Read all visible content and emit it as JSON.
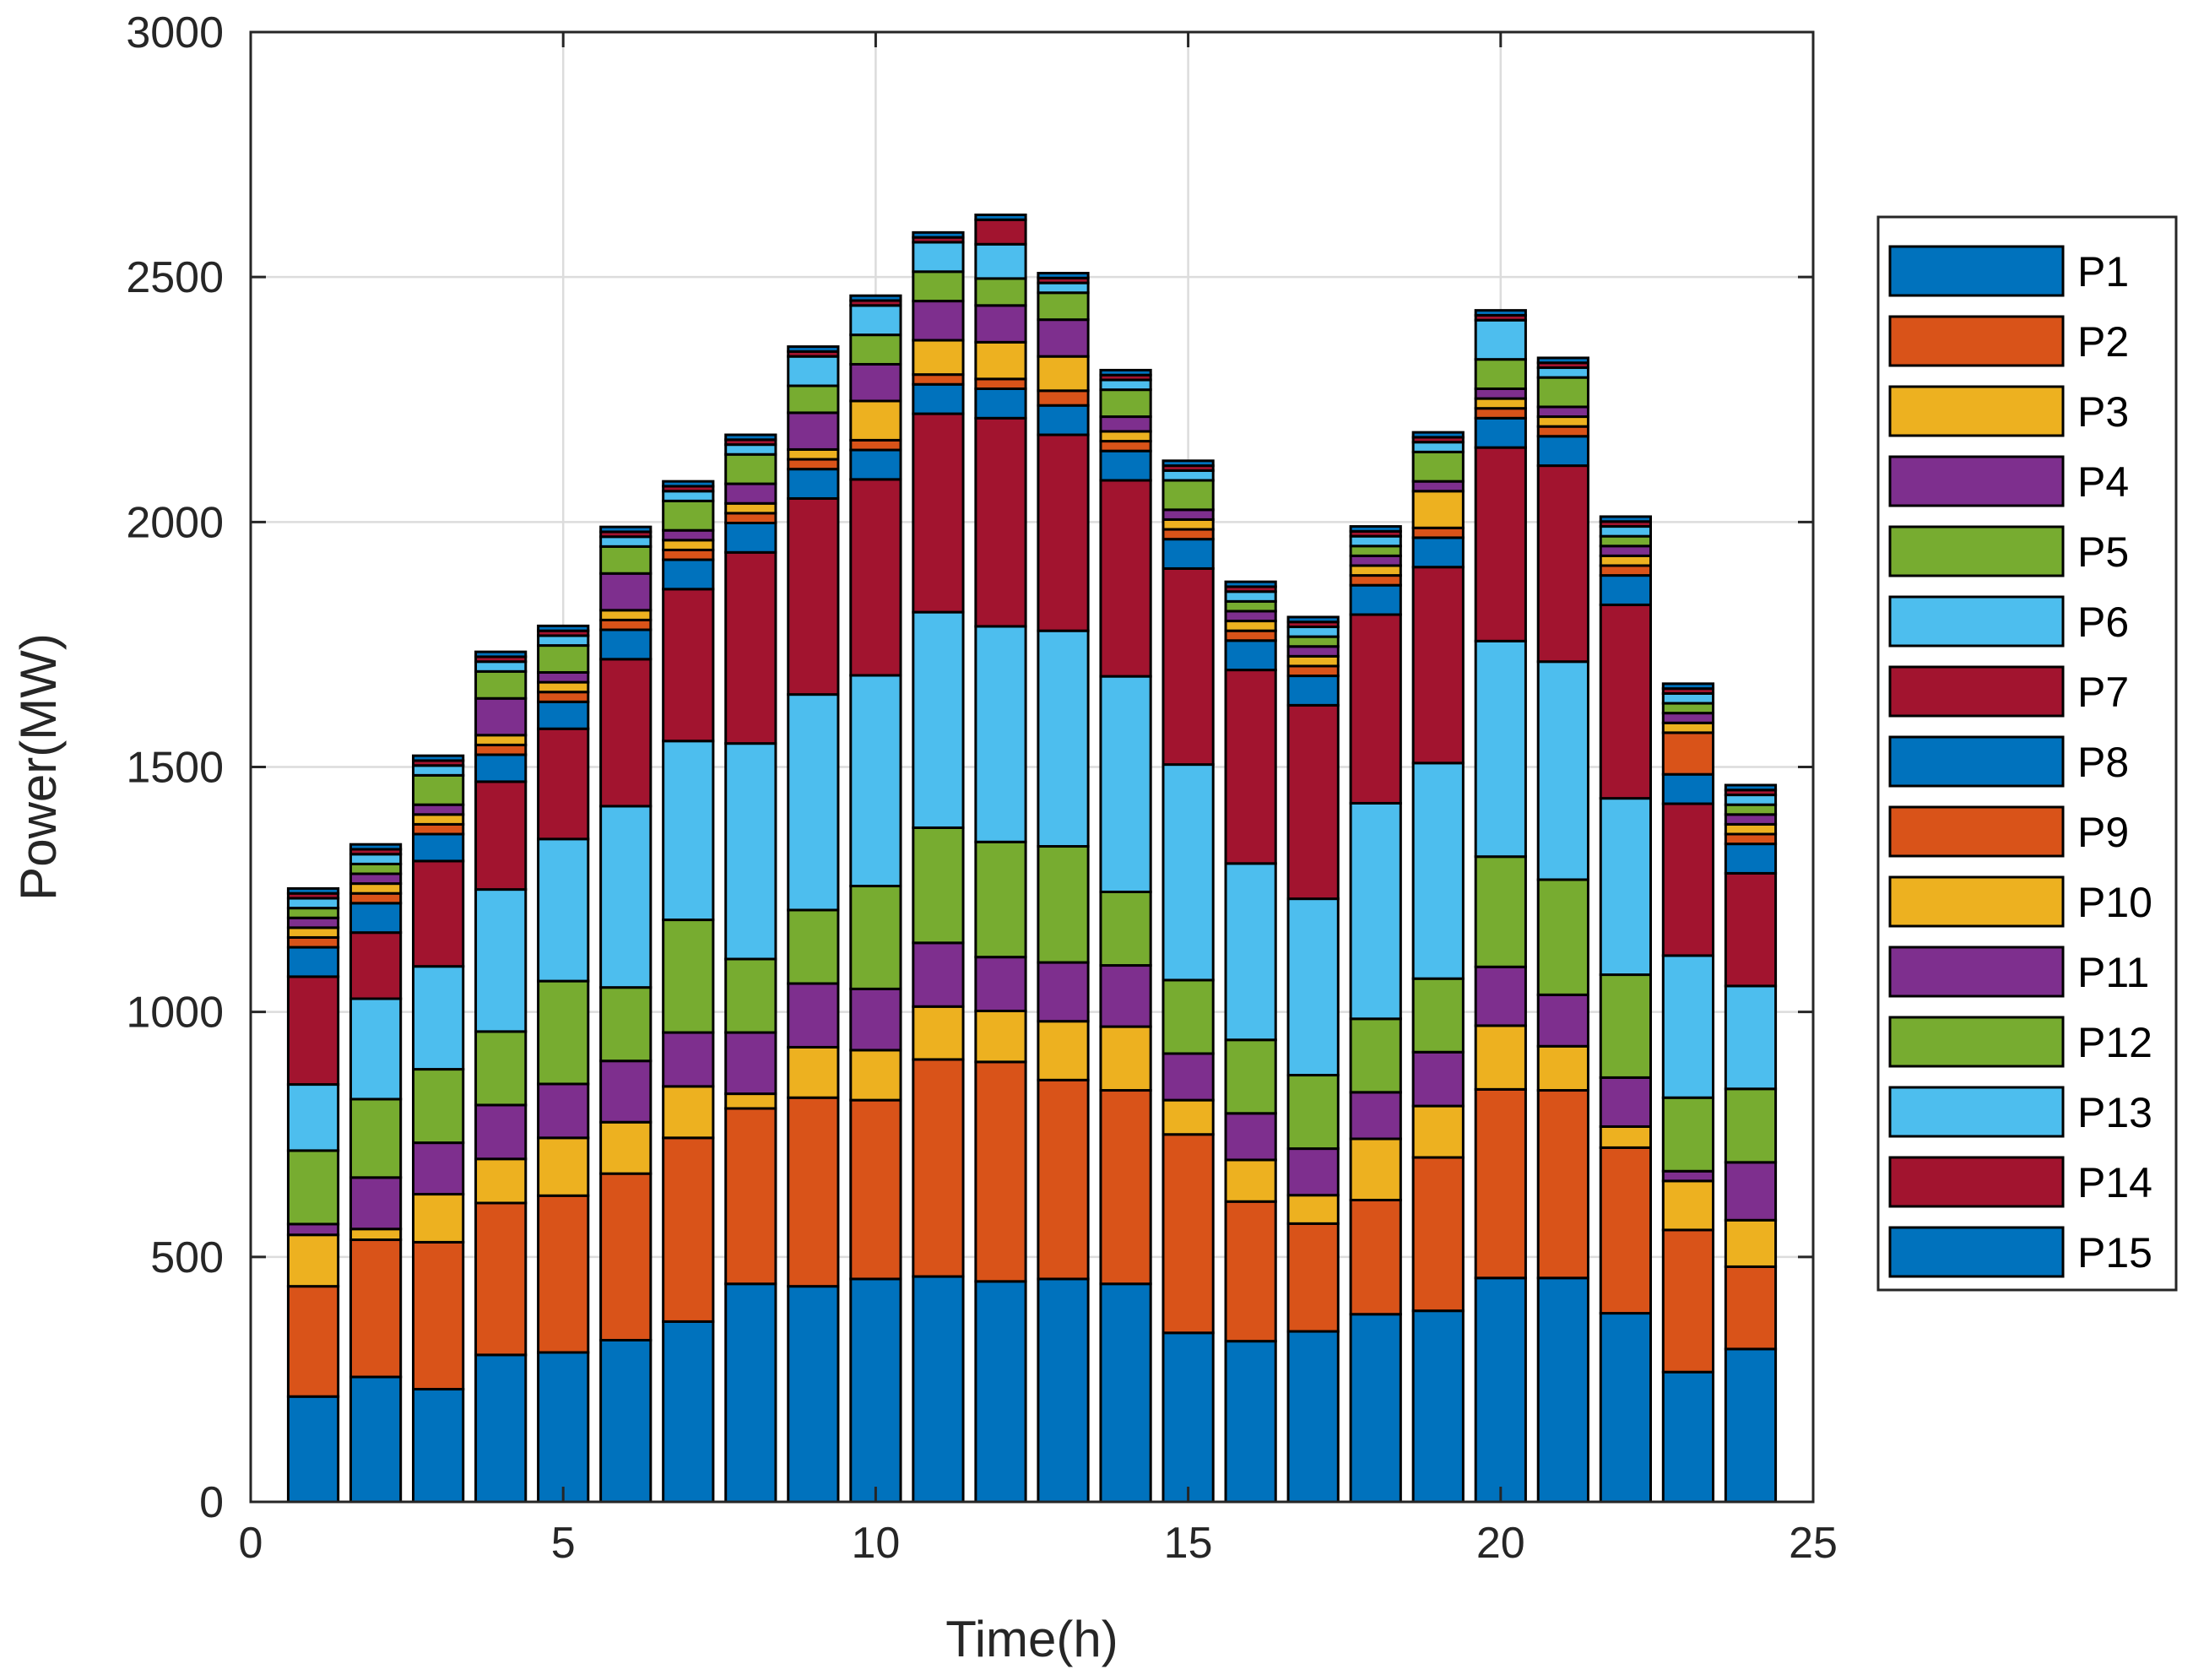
{
  "chart_data": {
    "type": "bar",
    "stacked": true,
    "title": "",
    "xlabel": "Time(h)",
    "ylabel": "Power(MW)",
    "xlim": [
      0,
      25
    ],
    "ylim": [
      0,
      3000
    ],
    "xticks": [
      0,
      5,
      10,
      15,
      20,
      25
    ],
    "yticks": [
      0,
      500,
      1000,
      1500,
      2000,
      2500,
      3000
    ],
    "grid": true,
    "legend_position": "right",
    "categories": [
      1,
      2,
      3,
      4,
      5,
      6,
      7,
      8,
      9,
      10,
      11,
      12,
      13,
      14,
      15,
      16,
      17,
      18,
      19,
      20,
      21,
      22,
      23,
      24
    ],
    "series": [
      {
        "name": "P1",
        "color": "#0072BD",
        "values": [
          215,
          255,
          230,
          300,
          305,
          330,
          368,
          445,
          440,
          455,
          460,
          450,
          455,
          445,
          345,
          328,
          348,
          383,
          390,
          457,
          457,
          385,
          265,
          312
        ]
      },
      {
        "name": "P2",
        "color": "#D95319",
        "values": [
          225,
          280,
          300,
          310,
          320,
          340,
          375,
          358,
          385,
          365,
          443,
          448,
          406,
          395,
          405,
          285,
          220,
          233,
          313,
          385,
          383,
          338,
          290,
          168
        ]
      },
      {
        "name": "P3",
        "color": "#EDB120",
        "values": [
          105,
          22,
          98,
          90,
          118,
          105,
          105,
          30,
          103,
          102,
          108,
          104,
          120,
          130,
          70,
          85,
          58,
          125,
          105,
          130,
          90,
          43,
          100,
          95
        ]
      },
      {
        "name": "P4",
        "color": "#7E2F8E",
        "values": [
          22,
          105,
          105,
          110,
          110,
          125,
          110,
          125,
          130,
          125,
          130,
          110,
          120,
          125,
          95,
          95,
          95,
          95,
          110,
          120,
          105,
          100,
          20,
          118
        ]
      },
      {
        "name": "P5",
        "color": "#77AC30",
        "values": [
          150,
          160,
          150,
          150,
          210,
          150,
          230,
          150,
          150,
          210,
          235,
          235,
          237,
          150,
          150,
          150,
          150,
          150,
          150,
          225,
          235,
          210,
          150,
          150
        ]
      },
      {
        "name": "P6",
        "color": "#4DBEEE",
        "values": [
          135,
          205,
          210,
          290,
          290,
          370,
          365,
          440,
          440,
          430,
          440,
          440,
          440,
          440,
          440,
          360,
          360,
          440,
          440,
          440,
          445,
          360,
          290,
          210
        ]
      },
      {
        "name": "P7",
        "color": "#A2142F",
        "values": [
          220,
          135,
          215,
          220,
          225,
          300,
          310,
          390,
          400,
          400,
          405,
          425,
          400,
          400,
          400,
          395,
          395,
          385,
          400,
          395,
          400,
          395,
          310,
          230
        ]
      },
      {
        "name": "P8",
        "color": "#0072BD",
        "values": [
          60,
          60,
          55,
          55,
          55,
          60,
          60,
          60,
          60,
          60,
          60,
          60,
          60,
          60,
          60,
          60,
          60,
          60,
          60,
          60,
          60,
          60,
          60,
          60
        ]
      },
      {
        "name": "P9",
        "color": "#D95319",
        "values": [
          20,
          20,
          20,
          20,
          20,
          20,
          20,
          20,
          20,
          20,
          20,
          20,
          30,
          20,
          20,
          20,
          20,
          20,
          20,
          20,
          20,
          20,
          85,
          20
        ]
      },
      {
        "name": "P10",
        "color": "#EDB120",
        "values": [
          20,
          20,
          20,
          20,
          20,
          20,
          20,
          20,
          20,
          80,
          70,
          75,
          70,
          20,
          20,
          20,
          20,
          20,
          75,
          20,
          20,
          20,
          20,
          20
        ]
      },
      {
        "name": "P11",
        "color": "#7E2F8E",
        "values": [
          20,
          20,
          20,
          75,
          20,
          75,
          20,
          40,
          75,
          75,
          80,
          75,
          75,
          30,
          20,
          20,
          20,
          20,
          20,
          20,
          20,
          20,
          20,
          20
        ]
      },
      {
        "name": "P12",
        "color": "#77AC30",
        "values": [
          20,
          20,
          60,
          55,
          55,
          55,
          60,
          60,
          55,
          60,
          60,
          55,
          55,
          55,
          60,
          20,
          20,
          20,
          60,
          60,
          60,
          20,
          20,
          20
        ]
      },
      {
        "name": "P13",
        "color": "#4DBEEE",
        "values": [
          20,
          20,
          20,
          20,
          20,
          20,
          20,
          20,
          60,
          60,
          60,
          70,
          20,
          20,
          20,
          20,
          20,
          20,
          20,
          80,
          20,
          20,
          20,
          20
        ]
      },
      {
        "name": "P14",
        "color": "#A2142F",
        "values": [
          10,
          10,
          10,
          10,
          10,
          10,
          10,
          10,
          10,
          10,
          10,
          50,
          10,
          10,
          10,
          10,
          10,
          10,
          10,
          10,
          10,
          10,
          10,
          10
        ]
      },
      {
        "name": "P15",
        "color": "#0072BD",
        "values": [
          10,
          10,
          10,
          10,
          10,
          10,
          10,
          10,
          10,
          10,
          10,
          10,
          10,
          10,
          10,
          10,
          10,
          10,
          10,
          10,
          10,
          10,
          10,
          10
        ]
      }
    ]
  }
}
